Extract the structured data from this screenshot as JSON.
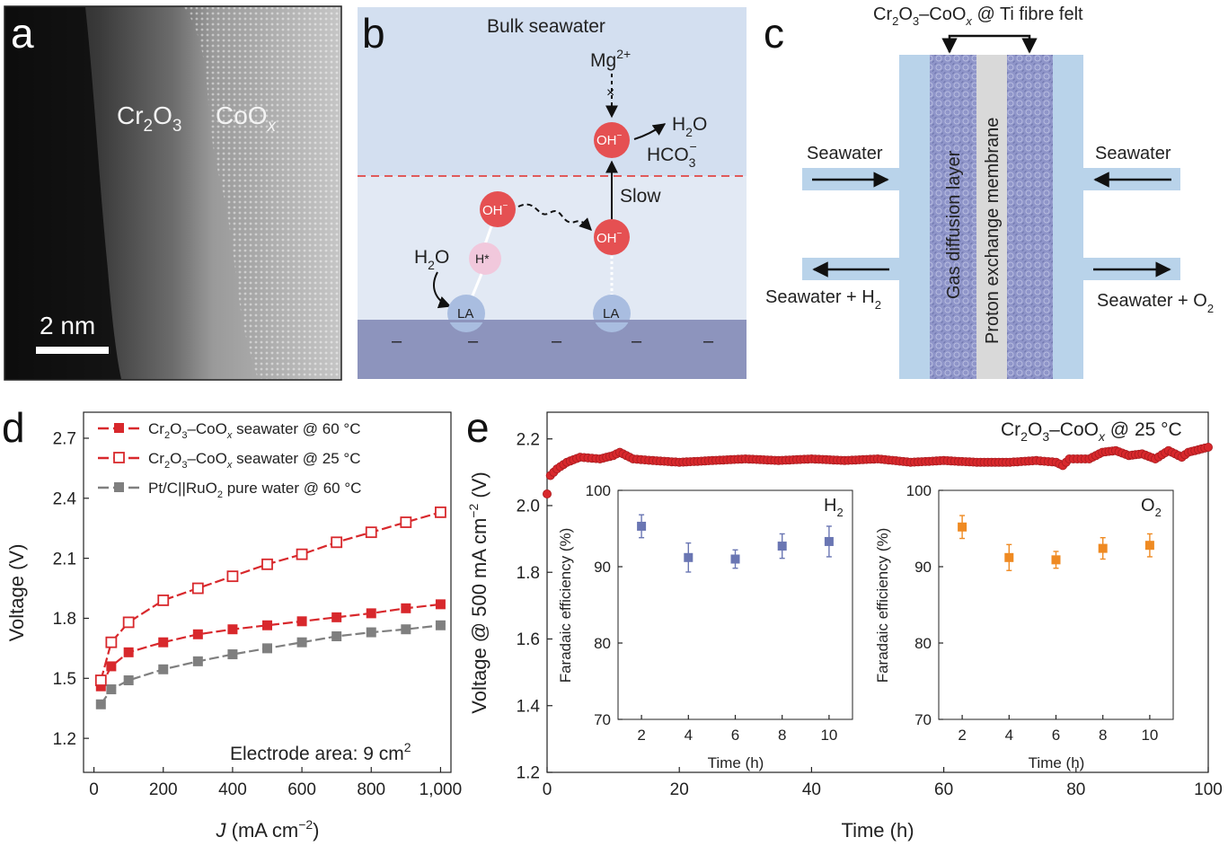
{
  "panel_a": {
    "letter": "a",
    "label_cr": "Cr",
    "label_cr_sub1": "2",
    "label_cr_o": "O",
    "label_cr_sub2": "3",
    "label_co": "CoO",
    "label_co_sub": "x",
    "scale_label": "2 nm"
  },
  "panel_b": {
    "letter": "b",
    "bulk_label": "Bulk seawater",
    "mg_label": "Mg",
    "mg_sup": "2+",
    "h2o_top": "H",
    "h2o_top_sub": "2",
    "h2o_top_o": "O",
    "hco3": "HCO",
    "hco3_sub": "3",
    "hco3_sup": "−",
    "slow_label": "Slow",
    "oh_label": "OH",
    "oh_sup": "−",
    "h_star": "H*",
    "h2o_left": "H",
    "h2o_left_sub": "2",
    "h2o_left_o": "O",
    "la_label": "LA",
    "minus_sign": "–",
    "cross_mark": "×"
  },
  "panel_c": {
    "letter": "c",
    "top_label_pre": "Cr",
    "top_label_sub1": "2",
    "top_label_o": "O",
    "top_label_sub2": "3",
    "top_label_mid": "–CoO",
    "top_label_subx": "x",
    "top_label_post": " @ Ti fibre felt",
    "seawater_left": "Seawater",
    "seawater_right": "Seawater",
    "out_left": "Seawater + H",
    "out_left_sub": "2",
    "out_right": "Seawater + O",
    "out_right_sub": "2",
    "gdl": "Gas diffusion layer",
    "pem": "Proton exchange membrane"
  },
  "panel_d": {
    "letter": "d",
    "annotation": "Electrode area: 9 cm",
    "annotation_sup": "2",
    "legend": [
      {
        "pre": "Cr",
        "s1": "2",
        "o": "O",
        "s2": "3",
        "mid": "–CoO",
        "sx": "x",
        "post": " seawater @ 60 °C"
      },
      {
        "pre": "Cr",
        "s1": "2",
        "o": "O",
        "s2": "3",
        "mid": "–CoO",
        "sx": "x",
        "post": " seawater @ 25 °C"
      },
      {
        "pre": "Pt/C||RuO",
        "s1": "2",
        "o": "",
        "s2": "",
        "mid": " pure water @ 60 °C",
        "sx": "",
        "post": ""
      }
    ]
  },
  "panel_e": {
    "letter": "e",
    "annotation_pre": "Cr",
    "annotation_s1": "2",
    "annotation_o": "O",
    "annotation_s2": "3",
    "annotation_mid": "–CoO",
    "annotation_sx": "x",
    "annotation_post": " @ 25 °C",
    "ylabel_pre": "Voltage @ 500 mA cm",
    "ylabel_sup": "−2",
    "ylabel_post": " (V)",
    "inset_h2_label": "H",
    "inset_h2_sub": "2",
    "inset_o2_label": "O",
    "inset_o2_sub": "2"
  },
  "colors": {
    "red": "#d8282c",
    "gray": "#7f7f7f",
    "blue_marker": "#6a76b3",
    "orange_marker": "#ef8a22",
    "panel_b_bg": "#dde6f2",
    "panel_b_top": "#d3dff0",
    "panel_b_base": "#8d94bd",
    "panel_c_channel": "#b9d3ea",
    "panel_c_felt": "#8f95c9",
    "panel_c_membrane": "#d9d9d9"
  },
  "chart_data": [
    {
      "panel": "d",
      "type": "line",
      "xlabel": "J (mA cm−2)",
      "ylabel": "Voltage (V)",
      "xlim": [
        -30,
        1030
      ],
      "ylim": [
        1.03,
        2.83
      ],
      "xticks": [
        0,
        200,
        400,
        600,
        800,
        1000
      ],
      "xtick_labels": [
        "0",
        "200",
        "400",
        "600",
        "800",
        "1,000"
      ],
      "yticks": [
        1.2,
        1.5,
        1.8,
        2.1,
        2.4,
        2.7
      ],
      "ytick_labels": [
        "1.2",
        "1.5",
        "1.8",
        "2.1",
        "2.4",
        "2.7"
      ],
      "legend_position": "top-left",
      "x": [
        20,
        50,
        100,
        200,
        300,
        400,
        500,
        600,
        700,
        800,
        900,
        1000
      ],
      "series": [
        {
          "name": "Cr2O3–CoOx seawater @ 60 °C",
          "color": "#d8282c",
          "marker": "filled-square",
          "values": [
            1.46,
            1.56,
            1.63,
            1.68,
            1.72,
            1.745,
            1.765,
            1.785,
            1.805,
            1.825,
            1.85,
            1.87
          ]
        },
        {
          "name": "Cr2O3–CoOx seawater @ 25 °C",
          "color": "#d8282c",
          "marker": "open-square",
          "values": [
            1.49,
            1.68,
            1.78,
            1.89,
            1.95,
            2.01,
            2.07,
            2.12,
            2.18,
            2.23,
            2.28,
            2.33
          ]
        },
        {
          "name": "Pt/C||RuO2 pure water @ 60 °C",
          "color": "#7f7f7f",
          "marker": "filled-square",
          "values": [
            1.37,
            1.445,
            1.49,
            1.545,
            1.585,
            1.62,
            1.65,
            1.68,
            1.71,
            1.73,
            1.745,
            1.765
          ]
        }
      ]
    },
    {
      "panel": "e",
      "type": "scatter",
      "xlabel": "Time (h)",
      "ylabel": "Voltage @ 500 mA cm−2 (V)",
      "xlim": [
        0,
        100
      ],
      "ylim": [
        1.2,
        2.28
      ],
      "xticks": [
        0,
        20,
        40,
        60,
        80,
        100
      ],
      "xtick_labels": [
        "0",
        "20",
        "40",
        "60",
        "80",
        "100"
      ],
      "yticks": [
        1.2,
        1.4,
        1.6,
        1.8,
        2.0,
        2.2
      ],
      "ytick_labels": [
        "1.2",
        "1.4",
        "1.6",
        "1.8",
        "2.0",
        "2.2"
      ],
      "series": [
        {
          "color": "#d8282c",
          "marker": "circle",
          "points": [
            [
              0,
              2.035
            ],
            [
              0.5,
              2.09
            ],
            [
              1.5,
              2.11
            ],
            [
              3,
              2.13
            ],
            [
              5,
              2.145
            ],
            [
              8,
              2.14
            ],
            [
              10,
              2.15
            ],
            [
              11,
              2.16
            ],
            [
              13,
              2.14
            ],
            [
              16,
              2.135
            ],
            [
              20,
              2.13
            ],
            [
              25,
              2.135
            ],
            [
              30,
              2.14
            ],
            [
              35,
              2.135
            ],
            [
              40,
              2.14
            ],
            [
              45,
              2.135
            ],
            [
              50,
              2.14
            ],
            [
              55,
              2.13
            ],
            [
              60,
              2.135
            ],
            [
              65,
              2.13
            ],
            [
              70,
              2.13
            ],
            [
              74,
              2.135
            ],
            [
              77,
              2.13
            ],
            [
              78,
              2.12
            ],
            [
              79,
              2.14
            ],
            [
              82,
              2.14
            ],
            [
              84,
              2.16
            ],
            [
              86,
              2.165
            ],
            [
              88,
              2.15
            ],
            [
              90,
              2.155
            ],
            [
              92,
              2.14
            ],
            [
              94,
              2.165
            ],
            [
              96,
              2.145
            ],
            [
              97,
              2.16
            ],
            [
              98,
              2.165
            ],
            [
              99,
              2.17
            ],
            [
              100,
              2.175
            ]
          ]
        }
      ]
    },
    {
      "panel": "e-inset-H2",
      "type": "scatter",
      "xlabel": "Time (h)",
      "ylabel": "Faradaic efficiency (%)",
      "xlim": [
        1,
        11
      ],
      "ylim": [
        70,
        100
      ],
      "xticks": [
        2,
        4,
        6,
        8,
        10
      ],
      "xtick_labels": [
        "2",
        "4",
        "6",
        "8",
        "10"
      ],
      "yticks": [
        70,
        80,
        90,
        100
      ],
      "ytick_labels": [
        "70",
        "80",
        "90",
        "100"
      ],
      "series": [
        {
          "color": "#6a76b3",
          "marker": "filled-square",
          "x": [
            2,
            4,
            6,
            8,
            10
          ],
          "values": [
            95.3,
            91.2,
            91.0,
            92.7,
            93.3
          ],
          "errors": [
            1.5,
            1.9,
            1.2,
            1.6,
            2.0
          ]
        }
      ]
    },
    {
      "panel": "e-inset-O2",
      "type": "scatter",
      "xlabel": "Time (h)",
      "ylabel": "Faradaic efficiency (%)",
      "xlim": [
        1,
        11
      ],
      "ylim": [
        70,
        100
      ],
      "xticks": [
        2,
        4,
        6,
        8,
        10
      ],
      "xtick_labels": [
        "2",
        "4",
        "6",
        "8",
        "10"
      ],
      "yticks": [
        70,
        80,
        90,
        100
      ],
      "ytick_labels": [
        "70",
        "80",
        "90",
        "100"
      ],
      "series": [
        {
          "color": "#ef8a22",
          "marker": "filled-square",
          "x": [
            2,
            4,
            6,
            8,
            10
          ],
          "values": [
            95.2,
            91.2,
            90.9,
            92.4,
            92.8
          ],
          "errors": [
            1.5,
            1.7,
            1.1,
            1.4,
            1.5
          ]
        }
      ]
    }
  ]
}
